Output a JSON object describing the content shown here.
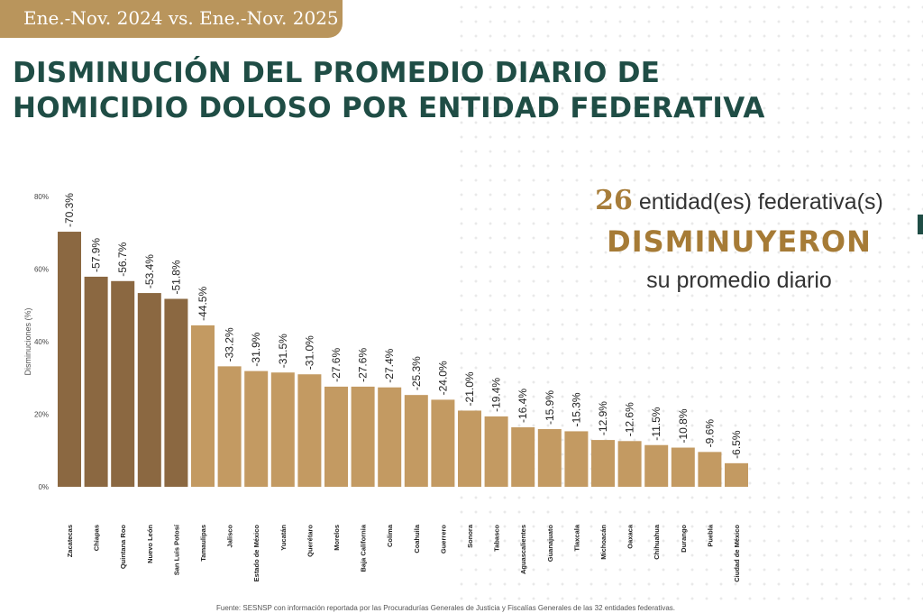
{
  "header": {
    "period": "Ene.-Nov. 2024 vs. Ene.-Nov. 2025",
    "title_line1": "DISMINUCIÓN DEL PROMEDIO DIARIO DE",
    "title_line2": "HOMICIDIO DOLOSO POR ENTIDAD FEDERATIVA"
  },
  "summary": {
    "count": "26",
    "count_suffix": " entidad(es) federativa(s)",
    "verb": "DISMINUYERON",
    "tail": "su promedio diario"
  },
  "footnote": "Fuente: SESNSP con información reportada por las Procuradurías Generales de Justicia y Fiscalías Generales de las 32 entidades federativas.",
  "colors": {
    "dark_bar": "#8b6841",
    "light_bar": "#c39a62",
    "title": "#1f4d45",
    "accent": "#b9955c"
  },
  "chart_data": {
    "type": "bar",
    "ylabel": "Disminuciones (%)",
    "ylim": [
      0,
      80
    ],
    "yticks": [
      0,
      20,
      40,
      60,
      80
    ],
    "categories": [
      "Zacatecas",
      "Chiapas",
      "Quintana Roo",
      "Nuevo León",
      "San Luis Potosí",
      "Tamaulipas",
      "Jalisco",
      "Estado de México",
      "Yucatán",
      "Querétaro",
      "Morelos",
      "Baja California",
      "Colima",
      "Coahuila",
      "Guerrero",
      "Sonora",
      "Tabasco",
      "Aguascalientes",
      "Guanajuato",
      "Tlaxcala",
      "Michoacán",
      "Oaxaca",
      "Chihuahua",
      "Durango",
      "Puebla",
      "Ciudad de México"
    ],
    "values": [
      70.3,
      57.9,
      56.7,
      53.4,
      51.8,
      44.5,
      33.2,
      31.9,
      31.5,
      31.0,
      27.6,
      27.6,
      27.4,
      25.3,
      24.0,
      21.0,
      19.4,
      16.4,
      15.9,
      15.3,
      12.9,
      12.6,
      11.5,
      10.8,
      9.6,
      6.5
    ],
    "labels": [
      "-70.3%",
      "-57.9%",
      "-56.7%",
      "-53.4%",
      "-51.8%",
      "-44.5%",
      "-33.2%",
      "-31.9%",
      "-31.5%",
      "-31.0%",
      "-27.6%",
      "-27.6%",
      "-27.4%",
      "-25.3%",
      "-24.0%",
      "-21.0%",
      "-19.4%",
      "-16.4%",
      "-15.9%",
      "-15.3%",
      "-12.9%",
      "-12.6%",
      "-11.5%",
      "-10.8%",
      "-9.6%",
      "-6.5%"
    ],
    "dark_count": 5,
    "grid": false,
    "legend": "none"
  }
}
